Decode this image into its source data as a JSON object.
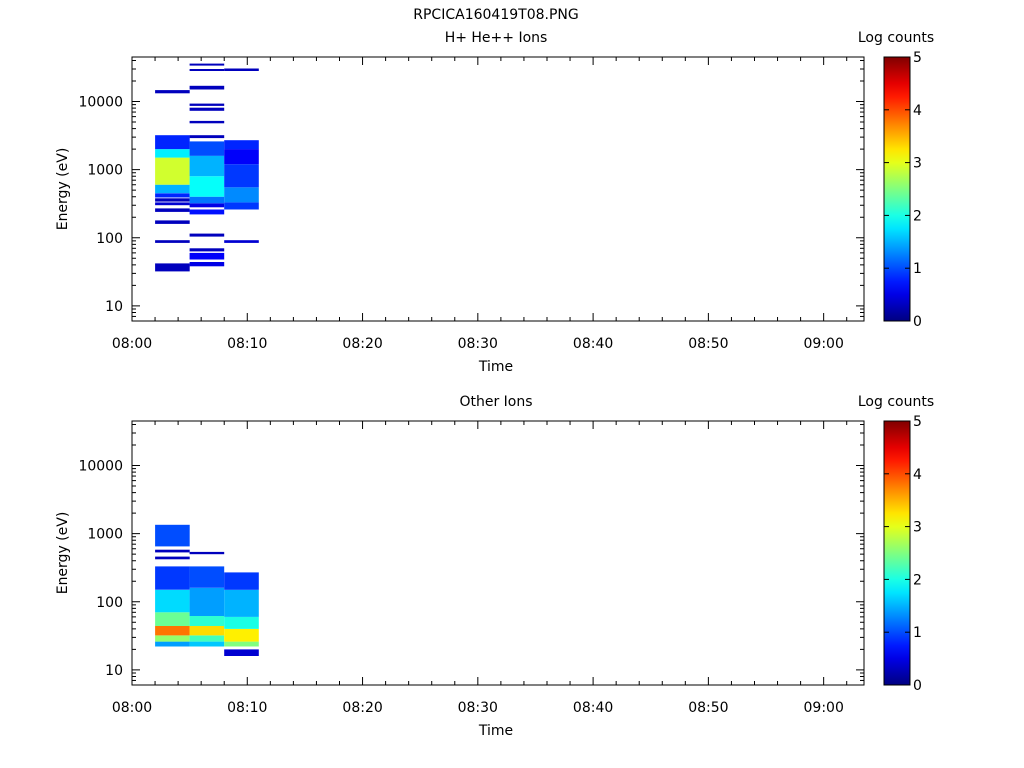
{
  "figure_title": "RPCICA160419T08.PNG",
  "colors": {
    "axis": "#000000",
    "background": "#ffffff"
  },
  "chart_data": [
    {
      "type": "heatmap",
      "title": "H+ He++ Ions",
      "xlabel": "Time",
      "ylabel": "Energy (eV)",
      "y_scale": "log",
      "ylim": [
        6,
        45000
      ],
      "x_tick_labels": [
        "08:00",
        "08:10",
        "08:20",
        "08:30",
        "08:40",
        "08:50",
        "09:00"
      ],
      "y_tick_labels": [
        "10",
        "100",
        "1000",
        "10000"
      ],
      "colorbar": {
        "label": "Log counts",
        "range": [
          0,
          5
        ],
        "tick_labels": [
          "0",
          "1",
          "2",
          "3",
          "4",
          "5"
        ],
        "colormap": "jet"
      },
      "time_bins": [
        {
          "start": "08:02",
          "end": "08:05",
          "cells": [
            {
              "e_lo": 32,
              "e_hi": 42,
              "value": 0.3
            },
            {
              "e_lo": 84,
              "e_hi": 92,
              "value": 0.3
            },
            {
              "e_lo": 160,
              "e_hi": 180,
              "value": 0.3
            },
            {
              "e_lo": 240,
              "e_hi": 270,
              "value": 0.3
            },
            {
              "e_lo": 300,
              "e_hi": 330,
              "value": 0.4
            },
            {
              "e_lo": 340,
              "e_hi": 380,
              "value": 0.3
            },
            {
              "e_lo": 390,
              "e_hi": 450,
              "value": 0.8
            },
            {
              "e_lo": 450,
              "e_hi": 600,
              "value": 1.5
            },
            {
              "e_lo": 600,
              "e_hi": 1500,
              "value": 2.9
            },
            {
              "e_lo": 1500,
              "e_hi": 2000,
              "value": 1.8
            },
            {
              "e_lo": 2000,
              "e_hi": 3200,
              "value": 0.8
            },
            {
              "e_lo": 13200,
              "e_hi": 14700,
              "value": 0.3
            }
          ]
        },
        {
          "start": "08:05",
          "end": "08:08",
          "cells": [
            {
              "e_lo": 38,
              "e_hi": 44,
              "value": 0.5
            },
            {
              "e_lo": 48,
              "e_hi": 60,
              "value": 0.6
            },
            {
              "e_lo": 63,
              "e_hi": 70,
              "value": 0.3
            },
            {
              "e_lo": 104,
              "e_hi": 115,
              "value": 0.3
            },
            {
              "e_lo": 220,
              "e_hi": 260,
              "value": 0.7
            },
            {
              "e_lo": 280,
              "e_hi": 320,
              "value": 0.5
            },
            {
              "e_lo": 320,
              "e_hi": 400,
              "value": 1.2
            },
            {
              "e_lo": 400,
              "e_hi": 800,
              "value": 1.9
            },
            {
              "e_lo": 800,
              "e_hi": 1600,
              "value": 1.5
            },
            {
              "e_lo": 1600,
              "e_hi": 2600,
              "value": 1.0
            },
            {
              "e_lo": 2900,
              "e_hi": 3200,
              "value": 0.3
            },
            {
              "e_lo": 4800,
              "e_hi": 5200,
              "value": 0.3
            },
            {
              "e_lo": 7300,
              "e_hi": 8100,
              "value": 0.3
            },
            {
              "e_lo": 8600,
              "e_hi": 9300,
              "value": 0.3
            },
            {
              "e_lo": 15000,
              "e_hi": 17000,
              "value": 0.3
            },
            {
              "e_lo": 28000,
              "e_hi": 30000,
              "value": 0.3
            },
            {
              "e_lo": 34000,
              "e_hi": 36000,
              "value": 0.3
            }
          ]
        },
        {
          "start": "08:08",
          "end": "08:11",
          "cells": [
            {
              "e_lo": 84,
              "e_hi": 92,
              "value": 0.4
            },
            {
              "e_lo": 260,
              "e_hi": 330,
              "value": 0.9
            },
            {
              "e_lo": 330,
              "e_hi": 550,
              "value": 1.3
            },
            {
              "e_lo": 550,
              "e_hi": 1200,
              "value": 0.9
            },
            {
              "e_lo": 1200,
              "e_hi": 2000,
              "value": 0.6
            },
            {
              "e_lo": 2000,
              "e_hi": 2700,
              "value": 0.8
            },
            {
              "e_lo": 28000,
              "e_hi": 30500,
              "value": 0.3
            }
          ]
        }
      ]
    },
    {
      "type": "heatmap",
      "title": "Other Ions",
      "xlabel": "Time",
      "ylabel": "Energy (eV)",
      "y_scale": "log",
      "ylim": [
        6,
        45000
      ],
      "x_tick_labels": [
        "08:00",
        "08:10",
        "08:20",
        "08:30",
        "08:40",
        "08:50",
        "09:00"
      ],
      "y_tick_labels": [
        "10",
        "100",
        "1000",
        "10000"
      ],
      "colorbar": {
        "label": "Log counts",
        "range": [
          0,
          5
        ],
        "tick_labels": [
          "0",
          "1",
          "2",
          "3",
          "4",
          "5"
        ],
        "colormap": "jet"
      },
      "time_bins": [
        {
          "start": "08:02",
          "end": "08:05",
          "cells": [
            {
              "e_lo": 22,
              "e_hi": 26,
              "value": 1.4
            },
            {
              "e_lo": 26,
              "e_hi": 32,
              "value": 2.6
            },
            {
              "e_lo": 32,
              "e_hi": 44,
              "value": 3.8
            },
            {
              "e_lo": 44,
              "e_hi": 70,
              "value": 2.4
            },
            {
              "e_lo": 70,
              "e_hi": 150,
              "value": 1.7
            },
            {
              "e_lo": 150,
              "e_hi": 330,
              "value": 0.9
            },
            {
              "e_lo": 420,
              "e_hi": 460,
              "value": 0.3
            },
            {
              "e_lo": 530,
              "e_hi": 580,
              "value": 0.3
            },
            {
              "e_lo": 650,
              "e_hi": 1350,
              "value": 1.0
            }
          ]
        },
        {
          "start": "08:05",
          "end": "08:08",
          "cells": [
            {
              "e_lo": 22,
              "e_hi": 26,
              "value": 1.6
            },
            {
              "e_lo": 26,
              "e_hi": 32,
              "value": 2.2
            },
            {
              "e_lo": 32,
              "e_hi": 44,
              "value": 3.3
            },
            {
              "e_lo": 44,
              "e_hi": 62,
              "value": 2.1
            },
            {
              "e_lo": 62,
              "e_hi": 160,
              "value": 1.4
            },
            {
              "e_lo": 160,
              "e_hi": 330,
              "value": 1.0
            },
            {
              "e_lo": 500,
              "e_hi": 540,
              "value": 0.3
            }
          ]
        },
        {
          "start": "08:08",
          "end": "08:11",
          "cells": [
            {
              "e_lo": 16,
              "e_hi": 20,
              "value": 0.4
            },
            {
              "e_lo": 22,
              "e_hi": 26,
              "value": 2.5
            },
            {
              "e_lo": 26,
              "e_hi": 40,
              "value": 3.2
            },
            {
              "e_lo": 40,
              "e_hi": 60,
              "value": 2.0
            },
            {
              "e_lo": 60,
              "e_hi": 150,
              "value": 1.5
            },
            {
              "e_lo": 150,
              "e_hi": 270,
              "value": 0.9
            }
          ]
        }
      ]
    }
  ]
}
